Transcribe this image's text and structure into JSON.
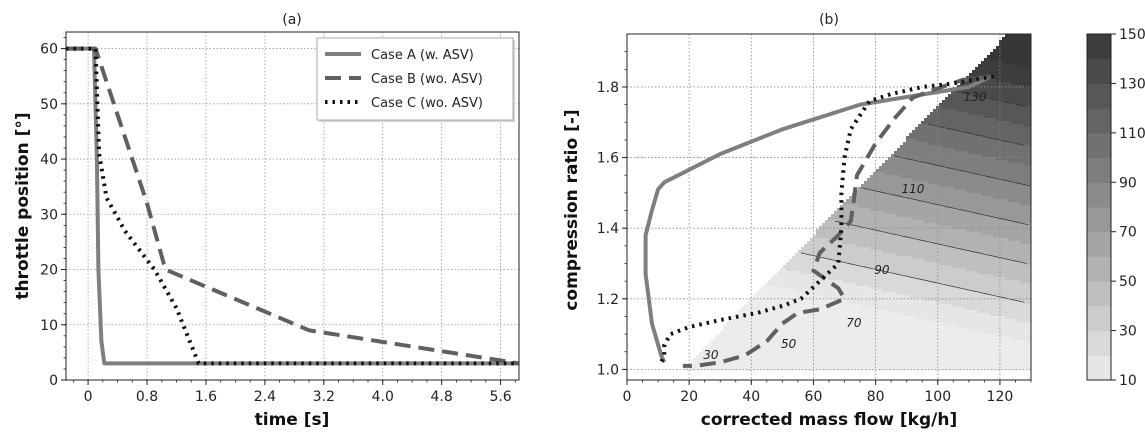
{
  "panels": {
    "a": {
      "title": "(a)"
    },
    "b": {
      "title": "(b)"
    }
  },
  "chart_data": [
    {
      "type": "line",
      "title": "(a)",
      "xlabel": "time [s]",
      "ylabel": "throttle position [°]",
      "xlim": [
        -0.3,
        5.85
      ],
      "ylim": [
        0,
        63
      ],
      "x_ticks": [
        "0",
        "0.8",
        "1.6",
        "2.4",
        "3.2",
        "4.0",
        "4.8",
        "5.6"
      ],
      "y_ticks": [
        "0",
        "10",
        "20",
        "30",
        "40",
        "50",
        "60"
      ],
      "x_tick_values": [
        0,
        0.8,
        1.6,
        2.4,
        3.2,
        4.0,
        4.8,
        5.6
      ],
      "y_tick_values": [
        0,
        10,
        20,
        30,
        40,
        50,
        60
      ],
      "grid": true,
      "legend": "top-right",
      "series": [
        {
          "name": "Case A (w.   ASV)",
          "style": "solid",
          "color": "#7f7f7f",
          "x": [
            -0.3,
            0.08,
            0.12,
            0.14,
            0.18,
            0.22,
            5.85
          ],
          "y": [
            60,
            60,
            40,
            20,
            7,
            3,
            3
          ]
        },
        {
          "name": "Case B (wo. ASV)",
          "style": "dashed",
          "color": "#606060",
          "x": [
            -0.3,
            0.1,
            0.8,
            1.05,
            3.0,
            5.85
          ],
          "y": [
            60,
            60,
            32,
            20,
            9,
            3
          ]
        },
        {
          "name": "Case C (wo. ASV)",
          "style": "dotted",
          "color": "#111111",
          "x": [
            -0.3,
            0.1,
            0.15,
            0.25,
            0.5,
            0.9,
            1.2,
            1.5,
            5.85
          ],
          "y": [
            60,
            60,
            41,
            33,
            27,
            20,
            13,
            3,
            3
          ]
        }
      ]
    },
    {
      "type": "line",
      "title": "(b)",
      "xlabel": "corrected mass flow [kg/h]",
      "ylabel": "compression ratio [-]",
      "xlim": [
        0,
        130
      ],
      "ylim": [
        0.97,
        1.95
      ],
      "x_ticks": [
        "0",
        "20",
        "40",
        "60",
        "80",
        "100",
        "120"
      ],
      "y_ticks": [
        "1.0",
        "1.2",
        "1.4",
        "1.6",
        "1.8"
      ],
      "x_tick_values": [
        0,
        20,
        40,
        60,
        80,
        100,
        120
      ],
      "y_tick_values": [
        1.0,
        1.2,
        1.4,
        1.6,
        1.8
      ],
      "grid": true,
      "colorbar": {
        "ticks": [
          "10",
          "30",
          "50",
          "70",
          "90",
          "110",
          "130",
          "150"
        ],
        "range": [
          10,
          150
        ]
      },
      "contour_labels": [
        "30",
        "50",
        "70",
        "90",
        "110",
        "130"
      ],
      "series": [
        {
          "name": "Case A (w.   ASV)",
          "style": "solid",
          "color": "#7f7f7f",
          "x": [
            117,
            110,
            96,
            75,
            50,
            30,
            12,
            10,
            8,
            6,
            6,
            7,
            8,
            10,
            11,
            12
          ],
          "y": [
            1.83,
            1.8,
            1.78,
            1.75,
            1.68,
            1.61,
            1.53,
            1.51,
            1.45,
            1.38,
            1.27,
            1.2,
            1.13,
            1.07,
            1.04,
            1.02
          ]
        },
        {
          "name": "Case B (wo. ASV)",
          "style": "dashed",
          "color": "#606060",
          "x": [
            118,
            108,
            98,
            92,
            86,
            80,
            76,
            74,
            73,
            72,
            68,
            62,
            60,
            68,
            70,
            62,
            55,
            50,
            45,
            38,
            30,
            22,
            18
          ],
          "y": [
            1.83,
            1.82,
            1.79,
            1.77,
            1.71,
            1.64,
            1.58,
            1.55,
            1.48,
            1.42,
            1.38,
            1.33,
            1.28,
            1.23,
            1.2,
            1.17,
            1.16,
            1.13,
            1.08,
            1.04,
            1.02,
            1.01,
            1.01
          ]
        },
        {
          "name": "Case C (wo. ASV)",
          "style": "dotted",
          "color": "#111111",
          "x": [
            118,
            105,
            95,
            85,
            78,
            72,
            70,
            69,
            69,
            68,
            62,
            56,
            50,
            42,
            30,
            20,
            14,
            12,
            12,
            11
          ],
          "y": [
            1.83,
            1.81,
            1.8,
            1.78,
            1.76,
            1.68,
            1.6,
            1.5,
            1.4,
            1.3,
            1.25,
            1.2,
            1.18,
            1.16,
            1.14,
            1.12,
            1.1,
            1.07,
            1.04,
            1.02
          ]
        }
      ]
    }
  ]
}
